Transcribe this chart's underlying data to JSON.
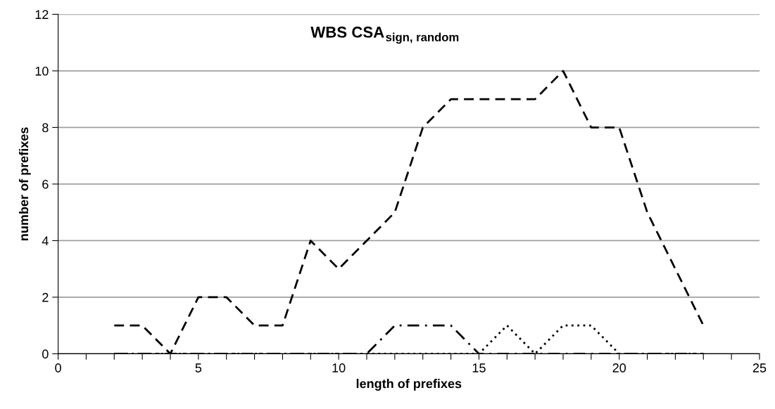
{
  "chart_data": {
    "type": "line",
    "title": "WBS CSA$_{sign, random}$",
    "xlabel": "length of prefixes",
    "ylabel": "number of prefixes",
    "x": [
      2,
      3,
      4,
      5,
      6,
      7,
      8,
      9,
      10,
      11,
      12,
      13,
      14,
      15,
      16,
      17,
      18,
      19,
      20,
      21,
      22,
      23
    ],
    "series": [
      {
        "color": "#000000",
        "line_style": "dashed",
        "values": [
          1,
          1,
          0,
          2,
          2,
          1,
          1,
          4,
          3,
          4,
          5,
          8,
          9,
          9,
          9,
          9,
          10,
          8,
          8,
          5,
          3,
          1
        ]
      },
      {
        "color": "#000000",
        "line_style": "dashdot",
        "values": [
          0,
          0,
          0,
          0,
          0,
          0,
          0,
          0,
          0,
          0,
          1,
          1,
          1,
          0,
          0,
          0,
          0,
          0,
          0,
          0,
          0,
          0
        ]
      },
      {
        "color": "#000000",
        "line_style": "dotted",
        "values": [
          0,
          0,
          0,
          0,
          0,
          0,
          0,
          0,
          0,
          0,
          0,
          0,
          0,
          0,
          1,
          0,
          1,
          1,
          0,
          0,
          0,
          0
        ]
      }
    ],
    "xlim": [
      0,
      25
    ],
    "ylim": [
      0,
      12
    ],
    "xticks": [
      0,
      {
        "value": 1,
        "label": null
      },
      {
        "value": 2,
        "label": null
      },
      {
        "value": 3,
        "label": null
      },
      {
        "value": 4,
        "label": null
      },
      5,
      {
        "value": 6,
        "label": null
      },
      {
        "value": 7,
        "label": null
      },
      {
        "value": 8,
        "label": null
      },
      {
        "value": 9,
        "label": null
      },
      10,
      {
        "value": 11,
        "label": null
      },
      {
        "value": 12,
        "label": null
      },
      {
        "value": 13,
        "label": null
      },
      {
        "value": 14,
        "label": null
      },
      15,
      {
        "value": 16,
        "label": null
      },
      {
        "value": 17,
        "label": null
      },
      {
        "value": 18,
        "label": null
      },
      {
        "value": 19,
        "label": null
      },
      20,
      {
        "value": 21,
        "label": null
      },
      {
        "value": 22,
        "label": null
      },
      {
        "value": 23,
        "label": null
      },
      {
        "value": 24,
        "label": null
      },
      25
    ],
    "yticks": [
      0,
      2,
      4,
      6,
      8,
      10,
      12
    ],
    "grid": "y",
    "marker": "none"
  }
}
